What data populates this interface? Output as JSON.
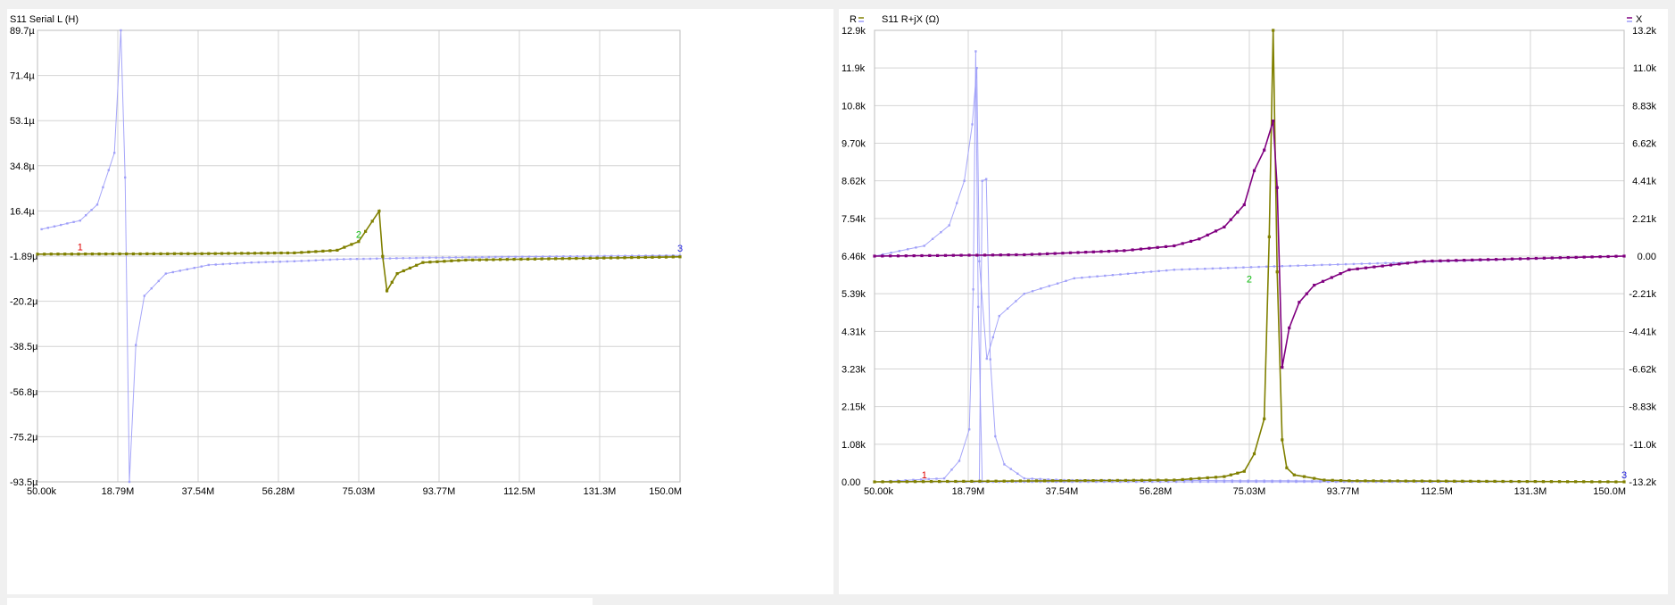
{
  "chart_data": [
    {
      "type": "line",
      "title": "S11 Serial L (H)",
      "x_unit": "Hz",
      "xlim": [
        50000,
        150000000
      ],
      "xticks": [
        "50.00k",
        "18.79M",
        "37.54M",
        "56.28M",
        "75.03M",
        "93.77M",
        "112.5M",
        "131.3M",
        "150.0M"
      ],
      "ylim": [
        -93.5,
        89.7
      ],
      "y_unit": "µH",
      "yticks": [
        "89.7µ",
        "71.4µ",
        "53.1µ",
        "34.8µ",
        "16.4µ",
        "-1.89µ",
        "-20.2µ",
        "-38.5µ",
        "-56.8µ",
        "-75.2µ",
        "-93.5µ"
      ],
      "grid": true,
      "series": [
        {
          "color": "#9c9cf8",
          "style": "light",
          "x": [
            1,
            10,
            14,
            18,
            19.5,
            20.5,
            21.5,
            23,
            25,
            30,
            40,
            50,
            60,
            70,
            90,
            110,
            150
          ],
          "y": [
            9,
            12.5,
            19,
            40,
            89.7,
            30,
            -93.5,
            -38,
            -18,
            -9,
            -5.5,
            -4.5,
            -4,
            -3.2,
            -2.6,
            -2.2,
            -1.6
          ]
        },
        {
          "color": "#808000",
          "style": "dark",
          "x": [
            0.05,
            40,
            60,
            70,
            75,
            79.8,
            80.6,
            81.6,
            84,
            90,
            100,
            150
          ],
          "y": [
            -1.1,
            -0.9,
            -0.6,
            0.5,
            4,
            16.4,
            -2,
            -16,
            -9,
            -4.5,
            -3.5,
            -2.2
          ]
        }
      ],
      "markers": [
        {
          "label": "1",
          "x": 10,
          "y": -1.0,
          "color": "#e00000"
        },
        {
          "label": "2",
          "x": 75,
          "y": 4.0,
          "color": "#10c010"
        },
        {
          "label": "3",
          "x": 150,
          "y": -1.5,
          "color": "#2020e0"
        }
      ]
    },
    {
      "type": "line",
      "title": "S11 R+jX (Ω)",
      "left_axis_label": "R",
      "right_axis_label": "X",
      "x_unit": "Hz",
      "xlim": [
        50000,
        150000000
      ],
      "xticks": [
        "50.00k",
        "18.79M",
        "37.54M",
        "56.28M",
        "75.03M",
        "93.77M",
        "112.5M",
        "131.3M",
        "150.0M"
      ],
      "ylim_left": [
        0,
        12900
      ],
      "yticks_left": [
        "12.9k",
        "11.9k",
        "10.8k",
        "9.70k",
        "8.62k",
        "7.54k",
        "6.46k",
        "5.39k",
        "4.31k",
        "3.23k",
        "2.15k",
        "1.08k",
        "0.00"
      ],
      "ylim_right": [
        -13200,
        13200
      ],
      "yticks_right": [
        "13.2k",
        "11.0k",
        "8.83k",
        "6.62k",
        "4.41k",
        "2.21k",
        "0.00",
        "-2.21k",
        "-4.41k",
        "-6.62k",
        "-8.83k",
        "-11.0k",
        "-13.2k"
      ],
      "grid": true,
      "series": [
        {
          "axis": "left",
          "color": "#9c9cf8",
          "style": "light",
          "x": [
            0.05,
            14,
            17,
            19,
            19.8,
            20.3,
            20.8,
            21.6,
            22.5,
            25,
            30,
            150
          ],
          "y": [
            0,
            100,
            600,
            1500,
            5500,
            12300,
            5000,
            0,
            0,
            0,
            0,
            0
          ]
        },
        {
          "axis": "left",
          "color": "#9c9cf8",
          "style": "light",
          "x": [
            0.05,
            20,
            21,
            21.6,
            22.4,
            23.2,
            24.2,
            26,
            30,
            38,
            150
          ],
          "y": [
            0,
            0,
            0,
            8600,
            8650,
            3500,
            1300,
            500,
            100,
            50,
            0
          ]
        },
        {
          "axis": "right",
          "color": "#9c9cf8",
          "style": "light",
          "x": [
            0.05,
            10,
            15,
            18,
            19.6,
            20.5,
            21,
            22.5,
            25,
            30,
            40,
            60,
            80,
            150
          ],
          "y": [
            0,
            600,
            1800,
            4400,
            7700,
            11000,
            -300,
            -6000,
            -3500,
            -2200,
            -1300,
            -800,
            -600,
            0
          ]
        },
        {
          "axis": "left",
          "color": "#808000",
          "style": "dark",
          "x": [
            0.05,
            60,
            70,
            74,
            76,
            78,
            79,
            79.8,
            80.6,
            81.6,
            82.5,
            84,
            86,
            88,
            90,
            95,
            150
          ],
          "y": [
            0,
            50,
            150,
            300,
            800,
            1800,
            7000,
            12900,
            6000,
            1200,
            400,
            200,
            150,
            100,
            50,
            30,
            0
          ]
        },
        {
          "axis": "right",
          "color": "#800080",
          "style": "dark",
          "x": [
            0.05,
            30,
            50,
            60,
            65,
            70,
            74,
            76,
            78,
            79.8,
            80.6,
            81.6,
            83,
            85,
            88,
            95,
            110,
            150
          ],
          "y": [
            0,
            80,
            320,
            600,
            1000,
            1700,
            3000,
            5000,
            6200,
            7900,
            4000,
            -6500,
            -4200,
            -2700,
            -1700,
            -800,
            -300,
            0
          ]
        }
      ],
      "markers": [
        {
          "label": "1",
          "x": 10,
          "y": 0,
          "color": "#e00000"
        },
        {
          "label": "2",
          "x": 75,
          "y": 5600,
          "color": "#10c010"
        },
        {
          "label": "3",
          "x": 150,
          "y": 0,
          "color": "#2020e0"
        }
      ]
    }
  ]
}
